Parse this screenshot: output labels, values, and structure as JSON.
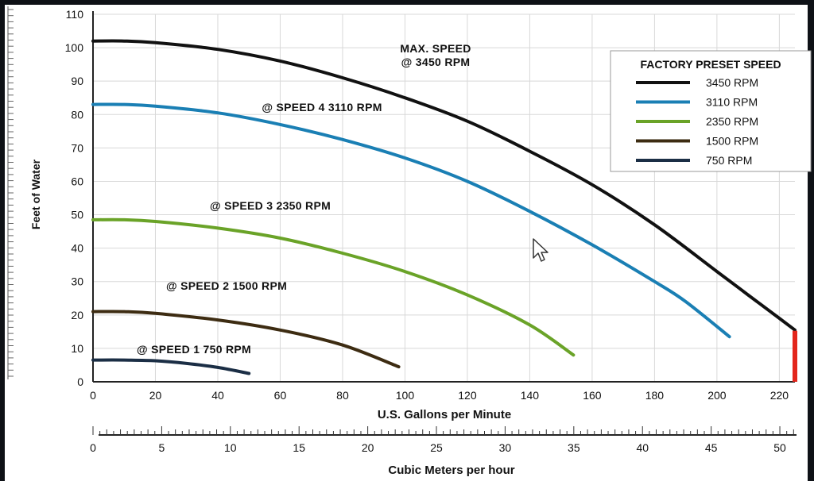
{
  "chart_data": {
    "type": "line",
    "xlabel": "U.S. Gallons per Minute",
    "ylabel": "Feet of Water",
    "xlim": [
      0,
      225
    ],
    "ylim": [
      0,
      110
    ],
    "x_ticks": [
      "0",
      "20",
      "40",
      "60",
      "80",
      "100",
      "120",
      "140",
      "160",
      "180",
      "200",
      "220"
    ],
    "y_ticks": [
      "0",
      "10",
      "20",
      "30",
      "40",
      "50",
      "60",
      "70",
      "80",
      "90",
      "100",
      "110"
    ],
    "grid": true,
    "legend": {
      "title": "FACTORY PRESET SPEED",
      "position": "top-right"
    },
    "series": [
      {
        "name": "3450 RPM",
        "label": "MAX. SPEED @ 3450 RPM",
        "color": "#111111",
        "x": [
          0,
          10,
          20,
          40,
          60,
          80,
          100,
          120,
          140,
          160,
          180,
          200,
          210,
          220,
          225
        ],
        "y": [
          102,
          102,
          101.5,
          99.5,
          96,
          91,
          85,
          78,
          69,
          59,
          47,
          33,
          26,
          19,
          15.5
        ]
      },
      {
        "name": "3110 RPM",
        "label": "@ SPEED 4 3110 RPM",
        "color": "#1a7fb4",
        "x": [
          0,
          10,
          20,
          40,
          60,
          80,
          100,
          120,
          140,
          160,
          180,
          190,
          204
        ],
        "y": [
          83,
          83,
          82.5,
          80.5,
          77,
          72.5,
          67,
          60,
          51,
          41,
          30,
          24,
          13.5
        ]
      },
      {
        "name": "2350 RPM",
        "label": "@ SPEED 3 2350 RPM",
        "color": "#6aa328",
        "x": [
          0,
          10,
          20,
          40,
          60,
          80,
          100,
          120,
          140,
          154
        ],
        "y": [
          48.5,
          48.5,
          48,
          46,
          43,
          38.5,
          33,
          26,
          17,
          8
        ]
      },
      {
        "name": "1500 RPM",
        "label": "@ SPEED 2 1500 RPM",
        "color": "#3d2c12",
        "x": [
          0,
          10,
          20,
          40,
          60,
          80,
          98
        ],
        "y": [
          21,
          21,
          20.5,
          18.5,
          15.5,
          11,
          4.5
        ]
      },
      {
        "name": "750 RPM",
        "label": "@ SPEED 1 750 RPM",
        "color": "#1b2e45",
        "x": [
          0,
          10,
          20,
          30,
          40,
          50
        ],
        "y": [
          6.5,
          6.5,
          6.3,
          5.5,
          4.3,
          2.5
        ]
      }
    ],
    "marker_color": "#e3261c",
    "secondary_x_axis": {
      "label": "Cubic Meters per hour",
      "ticks": [
        "0",
        "5",
        "10",
        "15",
        "20",
        "25",
        "30",
        "35",
        "40",
        "45",
        "50"
      ],
      "factor_per_gpm": 0.2271
    }
  }
}
